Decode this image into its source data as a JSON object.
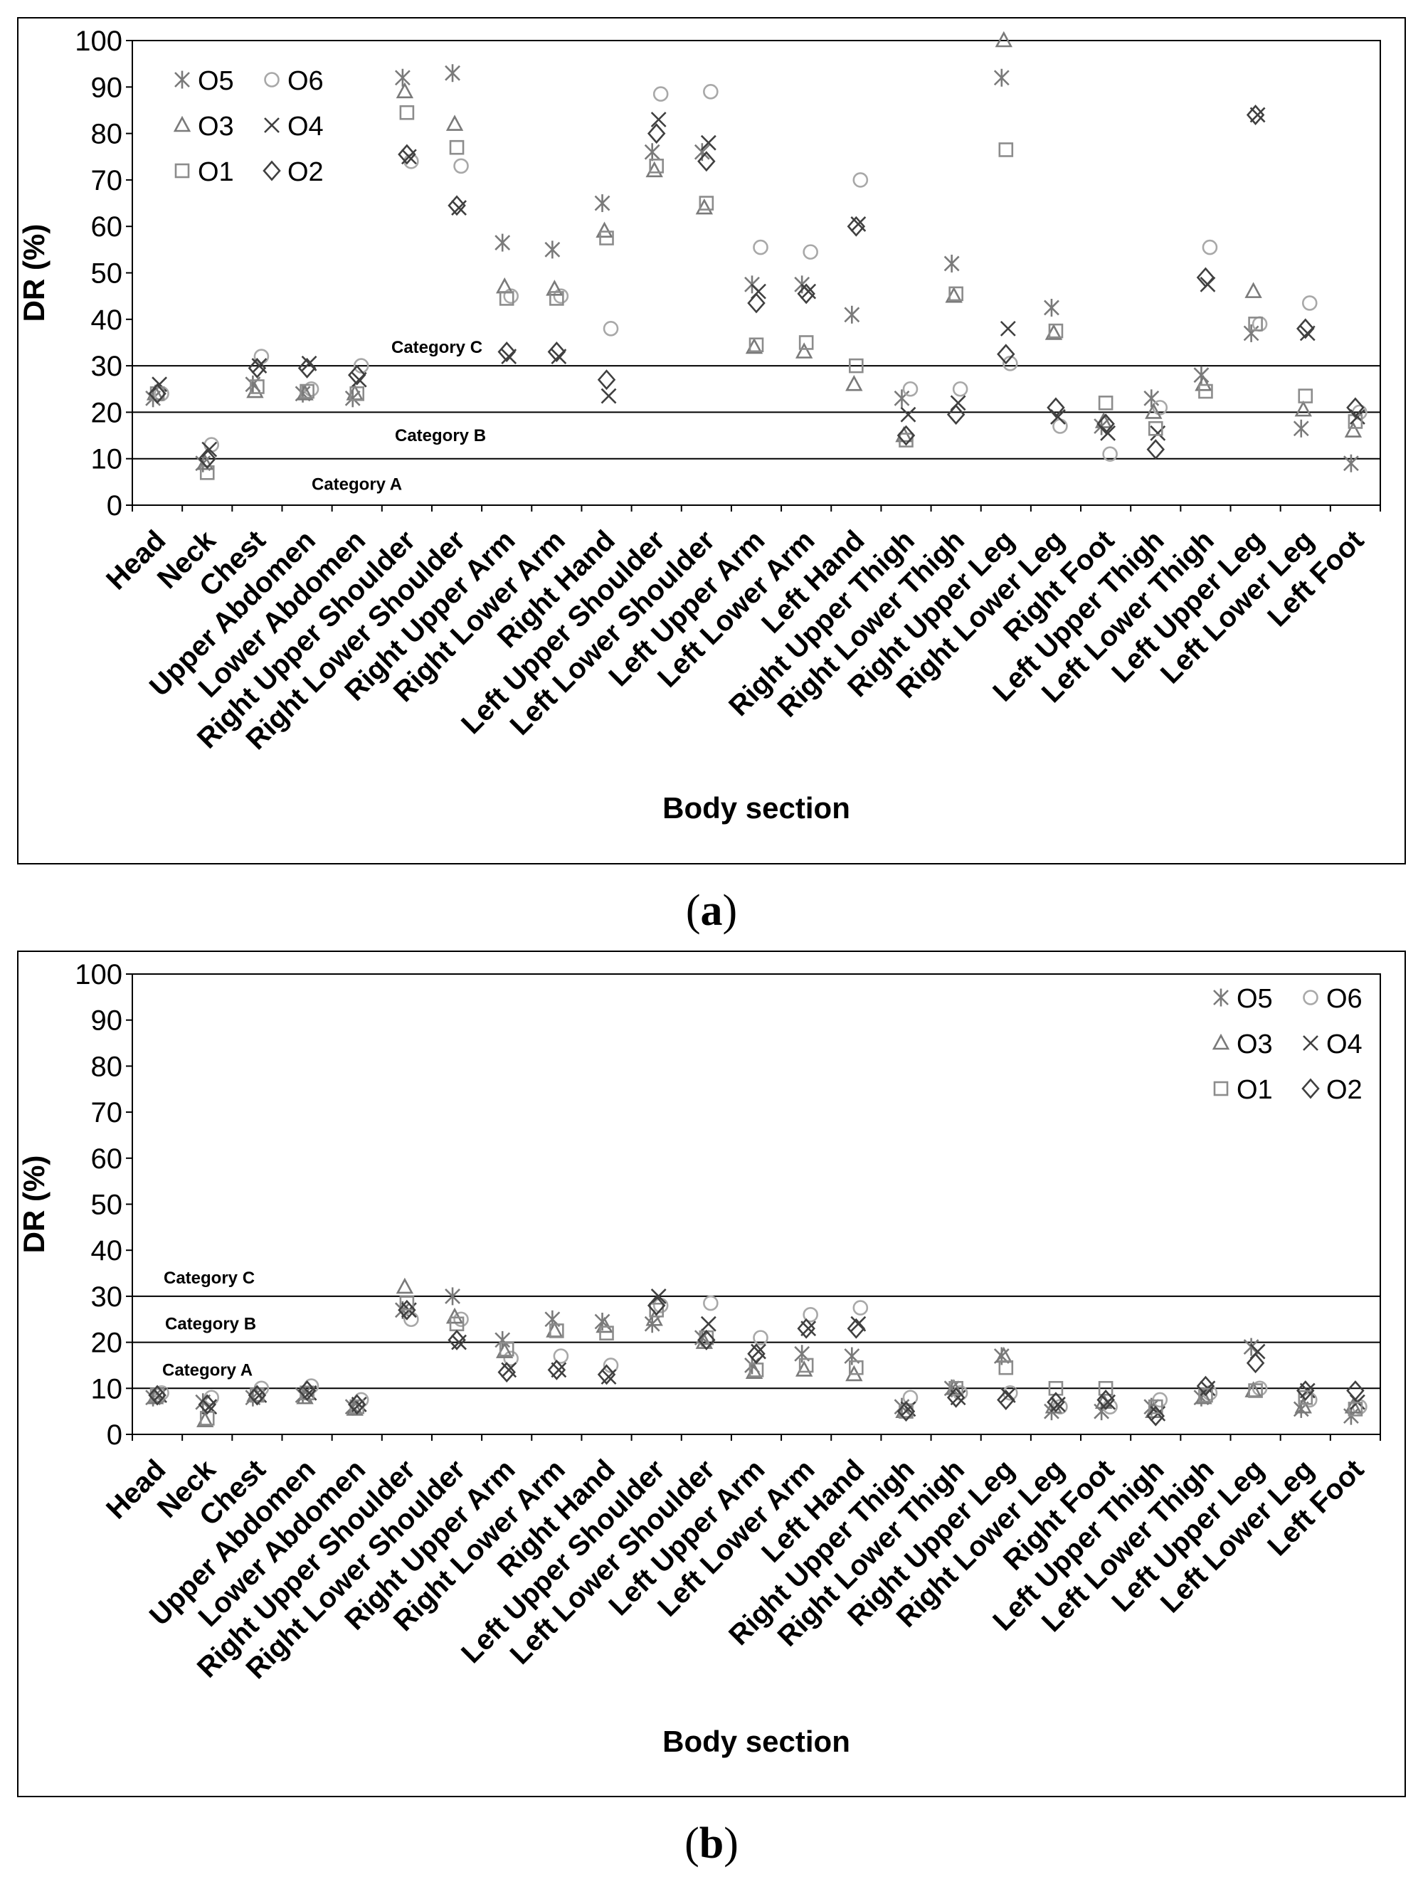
{
  "chart_data": [
    {
      "panel_label_open": "(",
      "panel_label": "a",
      "panel_label_close": ")",
      "type": "scatter",
      "xlabel": "Body section",
      "ylabel": "DR (%)",
      "ylim": [
        0,
        100
      ],
      "yticks": [
        0,
        10,
        20,
        30,
        40,
        50,
        60,
        70,
        80,
        90,
        100
      ],
      "legend_position": "top-left",
      "categories": [
        "Head",
        "Neck",
        "Chest",
        "Upper Abdomen",
        "Lower Abdomen",
        "Right Upper Shoulder",
        "Right Lower Shoulder",
        "Right Upper Arm",
        "Right Lower Arm",
        "Right Hand",
        "Left Upper Shoulder",
        "Left Lower Shoulder",
        "Left Upper Arm",
        "Left Lower Arm",
        "Left Hand",
        "Right Upper Thigh",
        "Right Lower Thigh",
        "Right Upper Leg",
        "Right Lower Leg",
        "Right Foot",
        "Left Upper Thigh",
        "Left Lower Thigh",
        "Left Upper Leg",
        "Left Lower Leg",
        "Left Foot"
      ],
      "thresholds": [
        {
          "value": 30,
          "label": "Category C",
          "label_value": 34
        },
        {
          "value": 20,
          "label": "Category B",
          "label_value": 15
        },
        {
          "value": 10,
          "label": "Category A",
          "label_value": 4.5
        }
      ],
      "series": [
        {
          "name": "O5",
          "marker": "asterisk",
          "color": "#7a7a7a",
          "values": [
            23,
            9,
            26,
            24,
            23,
            92,
            93,
            56.5,
            55,
            65,
            76,
            76,
            47.5,
            47.5,
            41,
            23,
            52,
            92,
            42.5,
            17,
            23,
            28,
            37,
            16.5,
            9
          ]
        },
        {
          "name": "O6",
          "marker": "circle",
          "color": "#a8a8a8",
          "values": [
            24,
            13,
            32,
            25,
            30,
            74,
            73,
            45,
            45,
            38,
            88.5,
            89,
            55.5,
            54.5,
            70,
            25,
            25,
            30.5,
            17,
            11,
            21,
            55.5,
            39,
            43.5,
            20
          ]
        },
        {
          "name": "O3",
          "marker": "triangle",
          "color": "#7a7a7a",
          "values": [
            24,
            9,
            24.5,
            24,
            24,
            89,
            82,
            47,
            46.5,
            59,
            72,
            64,
            34,
            33,
            26,
            15,
            45,
            100,
            37,
            18,
            20,
            26,
            46,
            20.5,
            16
          ]
        },
        {
          "name": "O4",
          "marker": "x",
          "color": "#404040",
          "values": [
            26,
            12,
            30,
            30.5,
            27,
            75,
            64,
            32,
            32,
            23.5,
            83,
            78,
            46,
            46,
            60.5,
            19.5,
            22,
            38,
            19,
            15.5,
            15.5,
            47.5,
            84,
            37,
            19
          ]
        },
        {
          "name": "O1",
          "marker": "square",
          "color": "#8c8c8c",
          "values": [
            24,
            7,
            25.5,
            24.5,
            24,
            84.5,
            77,
            44.5,
            44.5,
            57.5,
            73,
            65,
            34.5,
            35,
            30,
            14,
            45.5,
            76.5,
            37.5,
            22,
            16.5,
            24.5,
            39,
            23.5,
            18
          ]
        },
        {
          "name": "O2",
          "marker": "diamond",
          "color": "#404040",
          "values": [
            24,
            10,
            29.5,
            29.5,
            28,
            75.5,
            64.5,
            33,
            33,
            27,
            80,
            74,
            43.5,
            45.5,
            60,
            15,
            19.5,
            32.5,
            21,
            17.5,
            12,
            49,
            84,
            38,
            21
          ]
        }
      ]
    },
    {
      "panel_label_open": "(",
      "panel_label": "b",
      "panel_label_close": ")",
      "type": "scatter",
      "xlabel": "Body section",
      "ylabel": "DR (%)",
      "ylim": [
        0,
        100
      ],
      "yticks": [
        0,
        10,
        20,
        30,
        40,
        50,
        60,
        70,
        80,
        90,
        100
      ],
      "legend_position": "top-right",
      "categories": [
        "Head",
        "Neck",
        "Chest",
        "Upper Abdomen",
        "Lower Abdomen",
        "Right Upper Shoulder",
        "Right Lower Shoulder",
        "Right Upper Arm",
        "Right Lower Arm",
        "Right Hand",
        "Left Upper Shoulder",
        "Left Lower Shoulder",
        "Left Upper Arm",
        "Left Lower Arm",
        "Left Hand",
        "Right Upper Thigh",
        "Right Lower Thigh",
        "Right Upper Leg",
        "Right Lower Leg",
        "Right Foot",
        "Left Upper Thigh",
        "Left Lower Thigh",
        "Left Upper Leg",
        "Left Lower Leg",
        "Left Foot"
      ],
      "thresholds": [
        {
          "value": 30,
          "label": "Category C",
          "label_value": 34
        },
        {
          "value": 20,
          "label": "Category B",
          "label_value": 24
        },
        {
          "value": 10,
          "label": "Category A",
          "label_value": 14
        }
      ],
      "series": [
        {
          "name": "O5",
          "marker": "asterisk",
          "color": "#7a7a7a",
          "values": [
            8,
            7,
            8,
            8.5,
            6,
            27,
            30,
            20.5,
            25,
            24.5,
            24,
            21,
            15,
            17.5,
            17,
            6,
            10,
            17,
            5,
            5,
            6,
            8,
            19,
            5.5,
            4
          ]
        },
        {
          "name": "O6",
          "marker": "circle",
          "color": "#a8a8a8",
          "values": [
            9,
            8,
            10,
            10.5,
            7.5,
            25,
            25,
            16.5,
            17,
            15,
            28,
            28.5,
            21,
            26,
            27.5,
            8,
            9,
            9,
            6,
            6,
            7.5,
            9,
            10,
            7.5,
            6
          ]
        },
        {
          "name": "O3",
          "marker": "triangle",
          "color": "#7a7a7a",
          "values": [
            8,
            3,
            8.5,
            8,
            5.5,
            32,
            25.5,
            18,
            22.5,
            23.5,
            25,
            20,
            13.5,
            14,
            13,
            5,
            10,
            17,
            6,
            7,
            5,
            8,
            9.5,
            6,
            6
          ]
        },
        {
          "name": "O4",
          "marker": "x",
          "color": "#404040",
          "values": [
            8.5,
            6,
            8.5,
            9,
            6.5,
            27,
            20,
            14,
            14,
            12.5,
            30,
            24,
            18,
            23,
            24,
            5.5,
            8,
            8.5,
            6.5,
            7,
            4.5,
            10,
            18,
            9.5,
            7
          ]
        },
        {
          "name": "O1",
          "marker": "square",
          "color": "#8c8c8c",
          "values": [
            8.5,
            3.5,
            8.5,
            9,
            6,
            28.5,
            24,
            18.5,
            22.5,
            22,
            27,
            21,
            14,
            15,
            14.5,
            5,
            10,
            14.5,
            10,
            10,
            6,
            8.5,
            9.5,
            8,
            5.5
          ]
        },
        {
          "name": "O2",
          "marker": "diamond",
          "color": "#404040",
          "values": [
            8.5,
            6.5,
            8.5,
            9.5,
            6.5,
            27,
            20.5,
            13.5,
            14,
            13,
            28,
            20.5,
            17.5,
            23,
            23,
            5,
            8,
            7.5,
            7,
            7.5,
            4,
            10.5,
            15.5,
            9.5,
            9.5
          ]
        }
      ]
    }
  ]
}
